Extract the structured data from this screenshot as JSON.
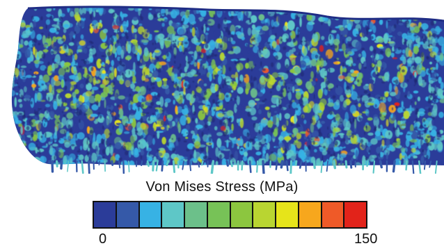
{
  "legend": {
    "title": "Von Mises Stress (MPa)",
    "min_label": "0",
    "max_label": "150",
    "min_value": 0,
    "max_value": 150,
    "colors": [
      "#2b3c99",
      "#3559a8",
      "#37b2e4",
      "#5ec7c7",
      "#6cc08a",
      "#77c257",
      "#8cc63f",
      "#b9d531",
      "#e6e41a",
      "#f7a71d",
      "#ef5a28",
      "#e2231a"
    ]
  },
  "render": {
    "background_color": "#2b3c99",
    "edge_color": "#1f2d85"
  }
}
